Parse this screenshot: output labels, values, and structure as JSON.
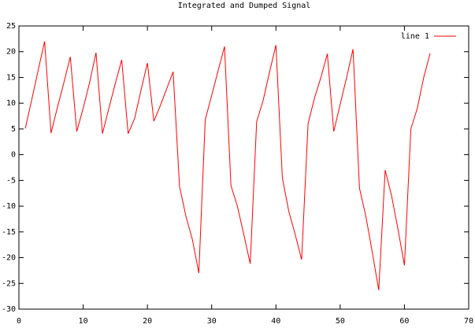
{
  "chart_data": {
    "type": "line",
    "title": "Integrated and Dumped Signal",
    "x": [
      1,
      2,
      3,
      4,
      5,
      6,
      7,
      8,
      9,
      10,
      11,
      12,
      13,
      14,
      15,
      16,
      17,
      18,
      19,
      20,
      21,
      22,
      23,
      24,
      25,
      26,
      27,
      28,
      29,
      30,
      31,
      32,
      33,
      34,
      35,
      36,
      37,
      38,
      39,
      40,
      41,
      42,
      43,
      44,
      45,
      46,
      47,
      48,
      49,
      50,
      51,
      52,
      53,
      54,
      55,
      56,
      57,
      58,
      59,
      60,
      61,
      62,
      63,
      64
    ],
    "series": [
      {
        "name": "line 1",
        "color": "#ff0000",
        "values": [
          5.1,
          10.7,
          16.4,
          22,
          4.2,
          9.2,
          14,
          19,
          4.5,
          9,
          14,
          19.8,
          4.1,
          9,
          13.8,
          18.4,
          4.1,
          7,
          12.5,
          17.8,
          6.5,
          9.5,
          12.8,
          16.1,
          -6.2,
          -12,
          -16.5,
          -23,
          6.8,
          11.5,
          16.3,
          21,
          -6,
          -10,
          -15.5,
          -21.2,
          6.4,
          10.5,
          16,
          21.3,
          -4.5,
          -11,
          -15.5,
          -20.4,
          6,
          11,
          15,
          19.6,
          4.5,
          9.8,
          15,
          20.5,
          -6.5,
          -12,
          -19,
          -26.3,
          -3,
          -8,
          -14.5,
          -21.5,
          5,
          9,
          15,
          19.7
        ]
      }
    ],
    "xlim": [
      0,
      70
    ],
    "xticks": [
      0,
      10,
      20,
      30,
      40,
      50,
      60,
      70
    ],
    "ylim": [
      -30,
      25
    ],
    "yticks": [
      -30,
      -25,
      -20,
      -15,
      -10,
      -5,
      0,
      5,
      10,
      15,
      20,
      25
    ],
    "legend": "top-right"
  }
}
